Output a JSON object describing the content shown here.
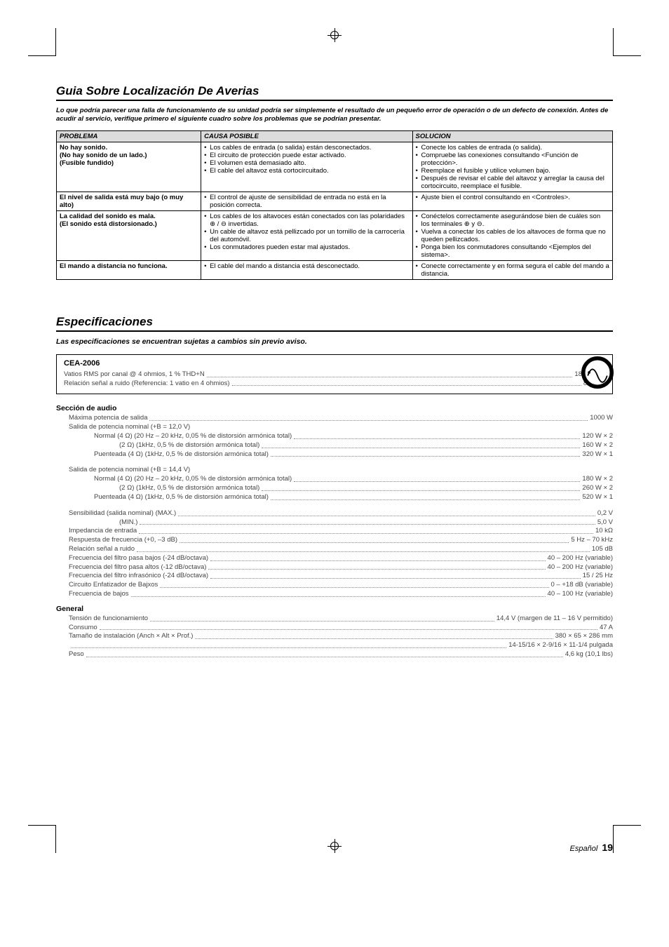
{
  "troubleshoot": {
    "heading": "Guia Sobre Localización De Averias",
    "intro": "Lo que podría parecer una falla de funcionamiento de su unidad podría ser simplemente el resultado de un pequeño error de operación o de un defecto de conexión. Antes de acudir al servicio, verifique primero el siguiente cuadro sobre los problemas que se podrían presentar.",
    "headers": {
      "problem": "PROBLEMA",
      "cause": "CAUSA POSIBLE",
      "solution": "SOLUCION"
    },
    "rows": [
      {
        "problem": "No hay sonido.\n(No hay sonido de un lado.)\n(Fusible fundido)",
        "causes": [
          "Los cables de entrada (o salida) están desconectados.",
          "El circuito de protección puede estar activado.",
          "El volumen está demasiado alto.",
          "El cable del altavoz está cortocircuitado."
        ],
        "solutions": [
          "Conecte los cables de entrada (o salida).",
          "Compruebe las conexiones consultando <Función de protección>.",
          "Reemplace el fusible y utilice volumen bajo.",
          "Después de revisar el cable del altavoz y arreglar la causa del cortocircuito, reemplace el fusible."
        ]
      },
      {
        "problem": "El nivel de salida está muy bajo (o muy alto)",
        "causes": [
          "El control de ajuste de sensibilidad de entrada no está en la posición correcta."
        ],
        "solutions": [
          "Ajuste bien el control consultando en <Controles>."
        ]
      },
      {
        "problem": "La calidad del sonido es mala.\n(El sonido está distorsionado.)",
        "causes": [
          "Los cables de los altavoces están conectados con las polaridades ⊕ / ⊖ invertidas.",
          "Un cable de altavoz está pellizcado por un tornillo de la carrocería del automóvil.",
          "Los conmutadores pueden estar mal ajustados."
        ],
        "solutions": [
          "Conéctelos correctamente asegurándose bien de cuáles son los terminales ⊕ y ⊖.",
          "Vuelva a conectar los cables de los altavoces de forma que no queden pellizcados.",
          "Ponga bien los conmutadores consultando <Ejemplos del sistema>."
        ]
      },
      {
        "problem": "El mando a distancia no funciona.",
        "causes": [
          "El cable del mando a distancia está desconectado."
        ],
        "solutions": [
          "Conecte correctamente y en forma segura el cable del mando a distancia."
        ]
      }
    ]
  },
  "specs": {
    "heading": "Especificaciones",
    "sub": "Las especificaciones se encuentran sujetas a cambios sin previo aviso.",
    "cea": {
      "title": "CEA-2006",
      "lines": [
        {
          "label": "Vatios RMS por canal @ 4 ohmios, 1 % THD+N",
          "value": "180 W × 2"
        },
        {
          "label": "Relación señal a ruido (Referencia: 1 vatio en 4 ohmios)",
          "value": "80 dBA"
        }
      ]
    },
    "audio": {
      "title": "Sección de audio",
      "lines": [
        {
          "label": "Máxima potencia de salida",
          "value": "1000 W",
          "indent": 1
        },
        {
          "label": "Salida de potencia nominal (+B = 12,0 V)",
          "value": "",
          "indent": 1
        },
        {
          "label": "Normal (4 Ω) (20 Hz – 20 kHz, 0,05 % de distorsión armónica total)",
          "value": "120 W × 2",
          "indent": 2
        },
        {
          "label": "(2 Ω) (1kHz, 0,5 % de distorsión armónica total)",
          "value": "160 W × 2",
          "indent": 3
        },
        {
          "label": "Puenteada (4 Ω) (1kHz, 0,5 % de distorsión armónica total)",
          "value": "320 W × 1",
          "indent": 2
        },
        {
          "gap": true
        },
        {
          "label": "Salida de potencia nominal (+B = 14,4 V)",
          "value": "",
          "indent": 1
        },
        {
          "label": "Normal (4 Ω) (20 Hz – 20 kHz, 0,05 % de distorsión armónica total)",
          "value": "180 W × 2",
          "indent": 2
        },
        {
          "label": "(2 Ω) (1kHz, 0,5 % de distorsión armónica total)",
          "value": "260 W × 2",
          "indent": 3
        },
        {
          "label": "Puenteada (4 Ω) (1kHz, 0,5 % de distorsión armónica total)",
          "value": "520 W × 1",
          "indent": 2
        },
        {
          "gap": true
        },
        {
          "label": "Sensibilidad (salida nominal) (MAX.)",
          "value": "0,2 V",
          "indent": 1
        },
        {
          "label": "(MIN.)",
          "value": "5,0 V",
          "indent": 3
        },
        {
          "label": "Impedancia de entrada",
          "value": "10 kΩ",
          "indent": 1
        },
        {
          "label": "Respuesta de frecuencia (+0, –3 dB)",
          "value": "5 Hz – 70 kHz",
          "indent": 1
        },
        {
          "label": "Relación señal a ruido",
          "value": "105 dB",
          "indent": 1
        },
        {
          "label": "Frecuencia del filtro pasa bajos (-24 dB/octava)",
          "value": "40 – 200 Hz (variable)",
          "indent": 1
        },
        {
          "label": "Frecuencia del filtro pasa altos (-12 dB/octava)",
          "value": "40 – 200 Hz (variable)",
          "indent": 1
        },
        {
          "label": "Frecuencia del filtro infrasónico (-24 dB/octava)",
          "value": "15 / 25 Hz",
          "indent": 1
        },
        {
          "label": "Circuito Enfatizador de Bajxos",
          "value": "0 – +18 dB (variable)",
          "indent": 1
        },
        {
          "label": "Frecuencia de bajos",
          "value": "40 – 100 Hz (variable)",
          "indent": 1
        }
      ]
    },
    "general": {
      "title": "General",
      "lines": [
        {
          "label": "Tensión de funcionamiento",
          "value": "14,4 V (margen de 11 – 16 V permitido)",
          "indent": 1
        },
        {
          "label": "Consumo",
          "value": "47 A",
          "indent": 1
        },
        {
          "label": "Tamaño de instalación (Anch × Alt × Prof.)",
          "value": "380 × 65 × 286 mm",
          "indent": 1
        },
        {
          "label": "",
          "value": "14-15/16 × 2-9/16 × 11-1/4  pulgada",
          "indent": 1
        },
        {
          "label": "Peso",
          "value": "4,6 kg (10,1 lbs)",
          "indent": 1
        }
      ]
    }
  },
  "footer": {
    "lang": "Español",
    "page": "19"
  }
}
